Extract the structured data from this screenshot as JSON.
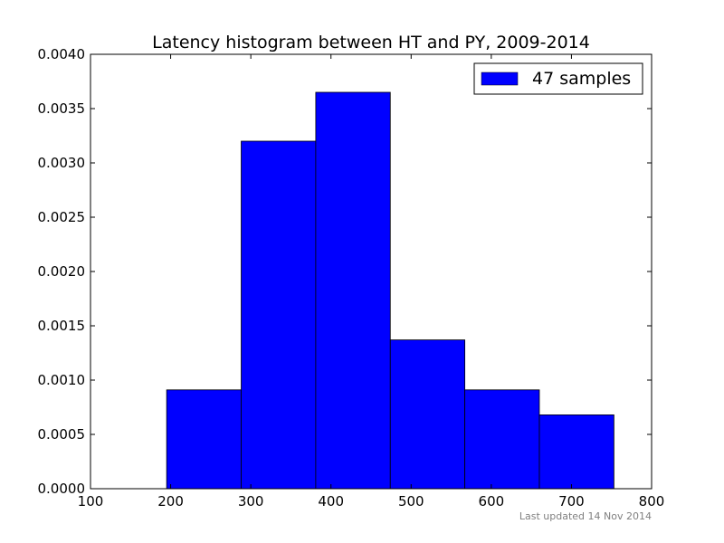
{
  "chart_data": {
    "type": "bar",
    "title": "Latency histogram between HT and PY, 2009-2014",
    "xlabel": "",
    "ylabel": "",
    "bins": [
      {
        "x0": 195,
        "x1": 288,
        "value": 0.00091
      },
      {
        "x0": 288,
        "x1": 381,
        "value": 0.0032
      },
      {
        "x0": 381,
        "x1": 474,
        "value": 0.00365
      },
      {
        "x0": 474,
        "x1": 567,
        "value": 0.00137
      },
      {
        "x0": 567,
        "x1": 660,
        "value": 0.00091
      },
      {
        "x0": 660,
        "x1": 753,
        "value": 0.00068
      }
    ],
    "series": [
      {
        "name": "47 samples",
        "color": "#0000ff"
      }
    ],
    "xlim": [
      100,
      800
    ],
    "ylim": [
      0,
      0.004
    ],
    "xticks": [
      "100",
      "200",
      "300",
      "400",
      "500",
      "600",
      "700",
      "800"
    ],
    "yticks": [
      "0.0000",
      "0.0005",
      "0.0010",
      "0.0015",
      "0.0020",
      "0.0025",
      "0.0030",
      "0.0035",
      "0.0040"
    ],
    "legend_position": "top-right",
    "grid": false
  },
  "footnote": "Last updated 14 Nov 2014"
}
